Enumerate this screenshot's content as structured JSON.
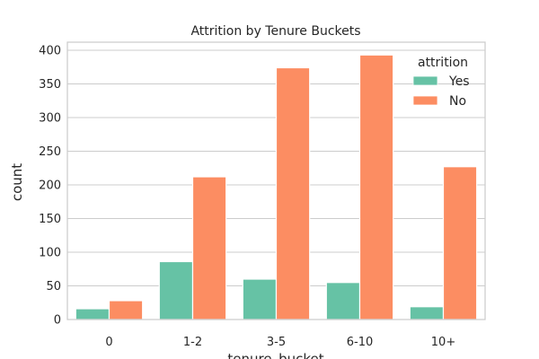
{
  "chart_data": {
    "type": "bar",
    "title": "Attrition by Tenure Buckets",
    "xlabel": "tenure_bucket",
    "ylabel": "count",
    "categories": [
      "0",
      "1-2",
      "3-5",
      "6-10",
      "10+"
    ],
    "series": [
      {
        "name": "Yes",
        "color": "#66c2a5",
        "values": [
          16,
          86,
          60,
          55,
          19
        ]
      },
      {
        "name": "No",
        "color": "#fc8d62",
        "values": [
          28,
          212,
          374,
          393,
          227
        ]
      }
    ],
    "ylim": [
      0,
      412
    ],
    "yticks": [
      0,
      50,
      100,
      150,
      200,
      250,
      300,
      350,
      400
    ],
    "grid": true,
    "legend": {
      "title": "attrition",
      "placement": "top-right"
    }
  }
}
